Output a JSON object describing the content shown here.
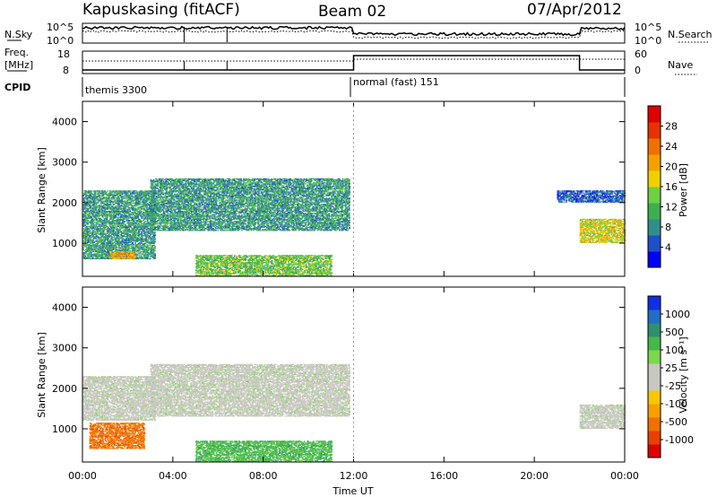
{
  "header": {
    "station": "Kapuskasing (fitACF)",
    "beam": "Beam 02",
    "date": "07/Apr/2012"
  },
  "top_panels": {
    "nsky_label": "N.Sky",
    "nsky_ticks": [
      "10^5",
      "10^0"
    ],
    "nsearch_label": "N.Search",
    "nsearch_ticks": [
      "10^5",
      "10^0"
    ],
    "freq_label": "Freq.",
    "freq_unit": "[MHz]",
    "freq_ticks": [
      "18",
      "8"
    ],
    "nave_label": "Nave",
    "nave_ticks": [
      "60",
      "0"
    ],
    "cpid_label": "CPID",
    "cpid_segments": [
      {
        "label": "themis 3300",
        "start_ut": 0.0,
        "end_ut": 12.0
      },
      {
        "label": "normal (fast) 151",
        "start_ut": 12.0,
        "end_ut": 24.0
      }
    ]
  },
  "axes": {
    "ylabel": "Slant Range [km]",
    "xlabel": "Time UT",
    "y_ticks": [
      "1000",
      "2000",
      "3000",
      "4000"
    ],
    "x_ticks": [
      "00:00",
      "04:00",
      "08:00",
      "12:00",
      "16:00",
      "20:00",
      "00:00"
    ]
  },
  "colorbars": {
    "power": {
      "label": "Power [dB]",
      "ticks": [
        "4",
        "8",
        "12",
        "16",
        "20",
        "24",
        "28"
      ],
      "colors": [
        "#0000ff",
        "#1e4fc8",
        "#2f8f8f",
        "#3cb04c",
        "#6fd040",
        "#f0d000",
        "#f6a000",
        "#f07000",
        "#e83000",
        "#e00000"
      ]
    },
    "velocity": {
      "label": "Velocity [m s⁻¹]",
      "ticks": [
        "1000",
        "500",
        "100",
        "25",
        "-25",
        "-100",
        "-500",
        "-1000"
      ],
      "colors": [
        "#1030e0",
        "#1f6ec8",
        "#2f8f6f",
        "#45b84a",
        "#7ad84a",
        "#c8c8c0",
        "#c8c8c0",
        "#f7c800",
        "#f7a000",
        "#f07000",
        "#e84000",
        "#e00000"
      ]
    }
  },
  "chart_data": [
    {
      "type": "heatmap",
      "quantity": "power",
      "xlabel": "Time UT",
      "ylabel": "Slant Range [km]",
      "x_range_ut_hours": [
        0,
        24
      ],
      "y_range_km": [
        180,
        4500
      ],
      "colorbar_label": "Power [dB]",
      "colorbar_range_db": [
        0,
        30
      ],
      "scatter_regions": [
        {
          "start_ut": 0.0,
          "end_ut": 3.2,
          "range_km": [
            600,
            2300
          ],
          "power_db": 8
        },
        {
          "start_ut": 1.2,
          "end_ut": 2.3,
          "range_km": [
            600,
            800
          ],
          "power_db": 20
        },
        {
          "start_ut": 3.0,
          "end_ut": 11.8,
          "range_km": [
            1300,
            2600
          ],
          "power_db": 8
        },
        {
          "start_ut": 5.0,
          "end_ut": 11.0,
          "range_km": [
            180,
            700
          ],
          "power_db": 12
        },
        {
          "start_ut": 22.0,
          "end_ut": 24.0,
          "range_km": [
            1000,
            1600
          ],
          "power_db": 16
        },
        {
          "start_ut": 21.0,
          "end_ut": 24.0,
          "range_km": [
            2000,
            2300
          ],
          "power_db": 4
        }
      ]
    },
    {
      "type": "heatmap",
      "quantity": "velocity",
      "xlabel": "Time UT",
      "ylabel": "Slant Range [km]",
      "x_range_ut_hours": [
        0,
        24
      ],
      "y_range_km": [
        180,
        4500
      ],
      "colorbar_label": "Velocity [m s⁻¹]",
      "colorbar_range_ms": [
        -1000,
        1000
      ],
      "scatter_regions": [
        {
          "start_ut": 0.0,
          "end_ut": 3.2,
          "range_km": [
            1200,
            2300
          ],
          "velocity_ms": 0
        },
        {
          "start_ut": 0.3,
          "end_ut": 2.7,
          "range_km": [
            500,
            1150
          ],
          "velocity_ms": -200
        },
        {
          "start_ut": 3.0,
          "end_ut": 11.8,
          "range_km": [
            1300,
            2600
          ],
          "velocity_ms": 0
        },
        {
          "start_ut": 5.0,
          "end_ut": 11.0,
          "range_km": [
            180,
            700
          ],
          "velocity_ms": 100
        },
        {
          "start_ut": 22.0,
          "end_ut": 24.0,
          "range_km": [
            1000,
            1600
          ],
          "velocity_ms": 0
        }
      ]
    }
  ]
}
